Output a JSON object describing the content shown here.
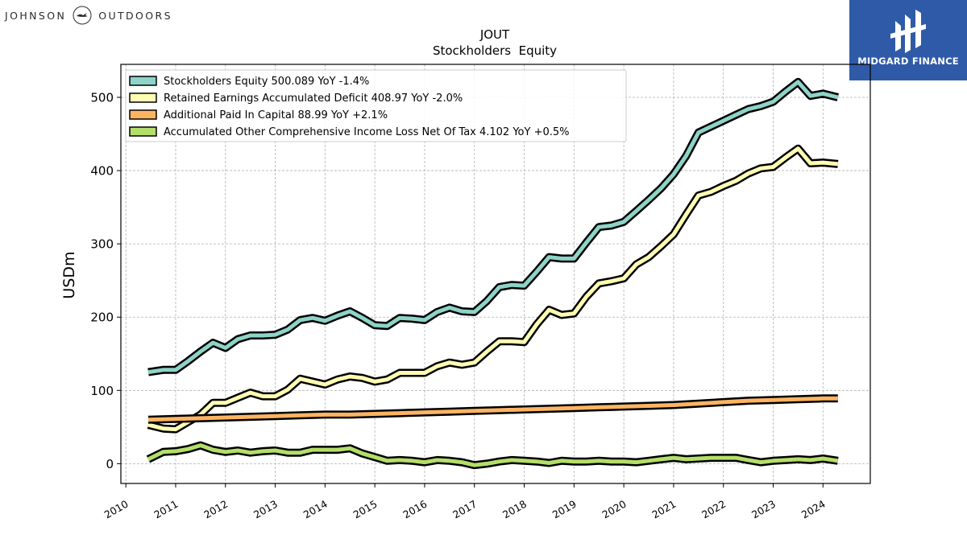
{
  "brand": {
    "left": "JOHNSON",
    "right": "OUTDOORS",
    "icon": "loon-bird-icon"
  },
  "badge": {
    "name": "MIDGARD FINANCE",
    "icon": "midgard-logo-icon"
  },
  "chart_data": {
    "type": "line",
    "title": "JOUT",
    "subtitle": "Stockholders  Equity",
    "ylabel": "USDm",
    "xlabel": "",
    "xlim": [
      2009.9,
      2024.95
    ],
    "ylim": [
      -27,
      545
    ],
    "xticks": [
      2010,
      2011,
      2012,
      2013,
      2014,
      2015,
      2016,
      2017,
      2018,
      2019,
      2020,
      2021,
      2022,
      2023,
      2024
    ],
    "yticks": [
      0,
      100,
      200,
      300,
      400,
      500
    ],
    "grid": true,
    "legend_position": "top-left",
    "series": [
      {
        "name": "Stockholders Equity",
        "legend": "Stockholders Equity  500.089 YoY -1.4%",
        "color": "#8dd3c7",
        "x": [
          2010.45,
          2010.75,
          2011.0,
          2011.25,
          2011.5,
          2011.75,
          2012.0,
          2012.25,
          2012.5,
          2012.75,
          2013.0,
          2013.25,
          2013.5,
          2013.75,
          2014.0,
          2014.25,
          2014.5,
          2014.75,
          2015.0,
          2015.25,
          2015.5,
          2015.75,
          2016.0,
          2016.25,
          2016.5,
          2016.75,
          2017.0,
          2017.25,
          2017.5,
          2017.75,
          2018.0,
          2018.25,
          2018.5,
          2018.75,
          2019.0,
          2019.25,
          2019.5,
          2019.75,
          2020.0,
          2020.25,
          2020.5,
          2020.75,
          2021.0,
          2021.25,
          2021.5,
          2021.75,
          2022.0,
          2022.25,
          2022.5,
          2022.75,
          2023.0,
          2023.25,
          2023.5,
          2023.75,
          2024.0,
          2024.3
        ],
        "values": [
          125,
          128,
          128,
          140,
          153,
          165,
          158,
          170,
          175,
          175,
          176,
          183,
          196,
          199,
          195,
          202,
          208,
          199,
          189,
          188,
          199,
          198,
          196,
          207,
          213,
          208,
          207,
          222,
          241,
          244,
          243,
          262,
          282,
          280,
          280,
          302,
          323,
          325,
          330,
          345,
          360,
          376,
          395,
          420,
          452,
          460,
          468,
          476,
          484,
          488,
          494,
          508,
          521,
          502,
          505,
          500
        ]
      },
      {
        "name": "Retained Earnings Accumulated Deficit",
        "legend": "Retained Earnings Accumulated Deficit  408.97 YoY -2.0%",
        "color": "#ffffb3",
        "x": [
          2010.45,
          2010.75,
          2011.0,
          2011.25,
          2011.5,
          2011.75,
          2012.0,
          2012.25,
          2012.5,
          2012.75,
          2013.0,
          2013.25,
          2013.5,
          2013.75,
          2014.0,
          2014.25,
          2014.5,
          2014.75,
          2015.0,
          2015.25,
          2015.5,
          2015.75,
          2016.0,
          2016.25,
          2016.5,
          2016.75,
          2017.0,
          2017.25,
          2017.5,
          2017.75,
          2018.0,
          2018.25,
          2018.5,
          2018.75,
          2019.0,
          2019.25,
          2019.5,
          2019.75,
          2020.0,
          2020.25,
          2020.5,
          2020.75,
          2021.0,
          2021.25,
          2021.5,
          2021.75,
          2022.0,
          2022.25,
          2022.5,
          2022.75,
          2023.0,
          2023.25,
          2023.5,
          2023.75,
          2024.0,
          2024.3
        ],
        "values": [
          53,
          48,
          47,
          57,
          67,
          83,
          83,
          90,
          97,
          92,
          92,
          101,
          116,
          112,
          108,
          115,
          119,
          117,
          112,
          115,
          124,
          124,
          124,
          133,
          138,
          135,
          138,
          153,
          167,
          167,
          166,
          190,
          210,
          203,
          205,
          228,
          246,
          249,
          253,
          272,
          282,
          297,
          313,
          340,
          366,
          371,
          379,
          386,
          396,
          403,
          405,
          418,
          430,
          410,
          411,
          409
        ]
      },
      {
        "name": "Additional Paid In Capital",
        "legend": "Additional Paid In Capital  88.99 YoY +2.1%",
        "color": "#fdb462",
        "x": [
          2010.45,
          2011.0,
          2011.5,
          2012.0,
          2012.5,
          2013.0,
          2013.5,
          2014.0,
          2014.5,
          2015.0,
          2015.5,
          2016.0,
          2016.5,
          2017.0,
          2017.5,
          2018.0,
          2018.5,
          2019.0,
          2019.5,
          2020.0,
          2020.5,
          2021.0,
          2021.5,
          2022.0,
          2022.5,
          2023.0,
          2023.5,
          2024.0,
          2024.3
        ],
        "values": [
          60,
          61,
          62,
          63,
          64,
          65,
          66,
          67,
          67,
          68,
          69,
          70,
          71,
          72,
          73,
          74,
          75,
          76,
          77,
          78,
          79,
          80,
          82,
          84,
          86,
          87,
          88,
          89,
          89
        ]
      },
      {
        "name": "Accumulated Other Comprehensive Income Loss Net Of Tax",
        "legend": "Accumulated Other Comprehensive Income Loss Net Of Tax  4.102 YoY +0.5%",
        "color": "#b3de69",
        "x": [
          2010.45,
          2010.75,
          2011.0,
          2011.25,
          2011.5,
          2011.75,
          2012.0,
          2012.25,
          2012.5,
          2012.75,
          2013.0,
          2013.25,
          2013.5,
          2013.75,
          2014.0,
          2014.25,
          2014.5,
          2014.75,
          2015.0,
          2015.25,
          2015.5,
          2015.75,
          2016.0,
          2016.25,
          2016.5,
          2016.75,
          2017.0,
          2017.25,
          2017.5,
          2017.75,
          2018.0,
          2018.25,
          2018.5,
          2018.75,
          2019.0,
          2019.25,
          2019.5,
          2019.75,
          2020.0,
          2020.25,
          2020.5,
          2020.75,
          2021.0,
          2021.25,
          2021.5,
          2021.75,
          2022.0,
          2022.25,
          2022.5,
          2022.75,
          2023.0,
          2023.25,
          2023.5,
          2023.75,
          2024.0,
          2024.3
        ],
        "values": [
          6,
          16,
          17,
          20,
          25,
          19,
          16,
          18,
          15,
          17,
          18,
          15,
          15,
          19,
          19,
          19,
          21,
          14,
          9,
          4,
          5,
          4,
          2,
          5,
          4,
          2,
          -2,
          0,
          3,
          5,
          4,
          3,
          1,
          4,
          3,
          3,
          4,
          3,
          3,
          2,
          4,
          6,
          8,
          6,
          7,
          8,
          8,
          8,
          5,
          2,
          4,
          5,
          6,
          5,
          7,
          4
        ]
      }
    ]
  }
}
